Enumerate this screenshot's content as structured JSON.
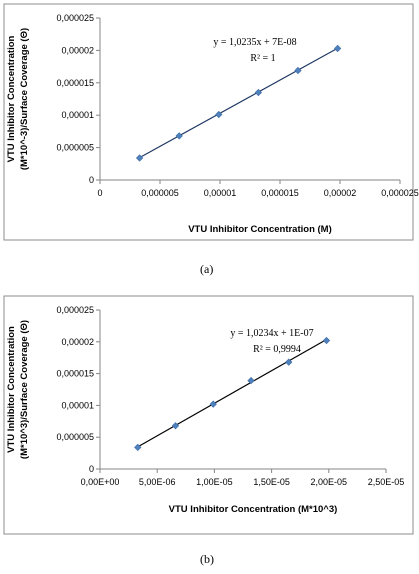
{
  "chart_data": [
    {
      "type": "scatter",
      "panel_label": "(a)",
      "xlabel": "VTU Inhibitor Concentration (M)",
      "ylabel": [
        "VTU Inhibitor Concentration",
        "(M*10^-3)/Surface Coverage (Θ)"
      ],
      "xlim": [
        0,
        2.5e-05
      ],
      "ylim": [
        0,
        2.5e-05
      ],
      "x_ticks": [
        0,
        5e-06,
        1e-05,
        1.5e-05,
        2e-05,
        2.5e-05
      ],
      "x_tick_labels": [
        "0",
        "0,000005",
        "0,00001",
        "0,000015",
        "0,00002",
        "0,000025"
      ],
      "y_ticks": [
        0,
        5e-06,
        1e-05,
        1.5e-05,
        2e-05,
        2.5e-05
      ],
      "y_tick_labels": [
        "0",
        "0,000005",
        "0,00001",
        "0,000015",
        "0,00002",
        "0,000025"
      ],
      "points": [
        {
          "x": 3.3e-06,
          "y": 3.4e-06
        },
        {
          "x": 6.6e-06,
          "y": 6.8e-06
        },
        {
          "x": 9.9e-06,
          "y": 1.01e-05
        },
        {
          "x": 1.32e-05,
          "y": 1.35e-05
        },
        {
          "x": 1.65e-05,
          "y": 1.69e-05
        },
        {
          "x": 1.98e-05,
          "y": 2.03e-05
        }
      ],
      "trendline": {
        "slope": 1.0235,
        "intercept": 7e-08,
        "x_range": [
          3.3e-06,
          1.98e-05
        ]
      },
      "equation": "y = 1,0235x + 7E-08",
      "r_squared": "R² = 1",
      "grid": false,
      "colors": {
        "marker": "#4f81bd",
        "line": "#1f3864"
      }
    },
    {
      "type": "scatter",
      "panel_label": "(b)",
      "xlabel": "VTU Inhibitor Concentration (M*10^3)",
      "ylabel": [
        "VTU Inhibitor Concentration",
        "(M*10^3)/Surface Coverage (Θ)"
      ],
      "xlim": [
        0,
        2.5e-05
      ],
      "ylim": [
        0,
        2.5e-05
      ],
      "x_ticks": [
        0,
        5e-06,
        1e-05,
        1.5e-05,
        2e-05,
        2.5e-05
      ],
      "x_tick_labels": [
        "0,00E+00",
        "5,00E-06",
        "1,00E-05",
        "1,50E-05",
        "2,00E-05",
        "2,50E-05"
      ],
      "y_ticks": [
        0,
        5e-06,
        1e-05,
        1.5e-05,
        2e-05,
        2.5e-05
      ],
      "y_tick_labels": [
        "0",
        "0,000005",
        "0,00001",
        "0,000015",
        "0,00002",
        "0,000025"
      ],
      "points": [
        {
          "x": 3.3e-06,
          "y": 3.4e-06
        },
        {
          "x": 6.6e-06,
          "y": 6.8e-06
        },
        {
          "x": 9.9e-06,
          "y": 1.02e-05
        },
        {
          "x": 1.32e-05,
          "y": 1.39e-05
        },
        {
          "x": 1.65e-05,
          "y": 1.68e-05
        },
        {
          "x": 1.98e-05,
          "y": 2.02e-05
        }
      ],
      "trendline": {
        "slope": 1.0234,
        "intercept": 1e-07,
        "x_range": [
          3.3e-06,
          1.98e-05
        ]
      },
      "equation": "y = 1,0234x + 1E-07",
      "r_squared": "R² = 0,9994",
      "grid": false,
      "colors": {
        "marker": "#4f81bd",
        "line": "#000000"
      }
    }
  ]
}
